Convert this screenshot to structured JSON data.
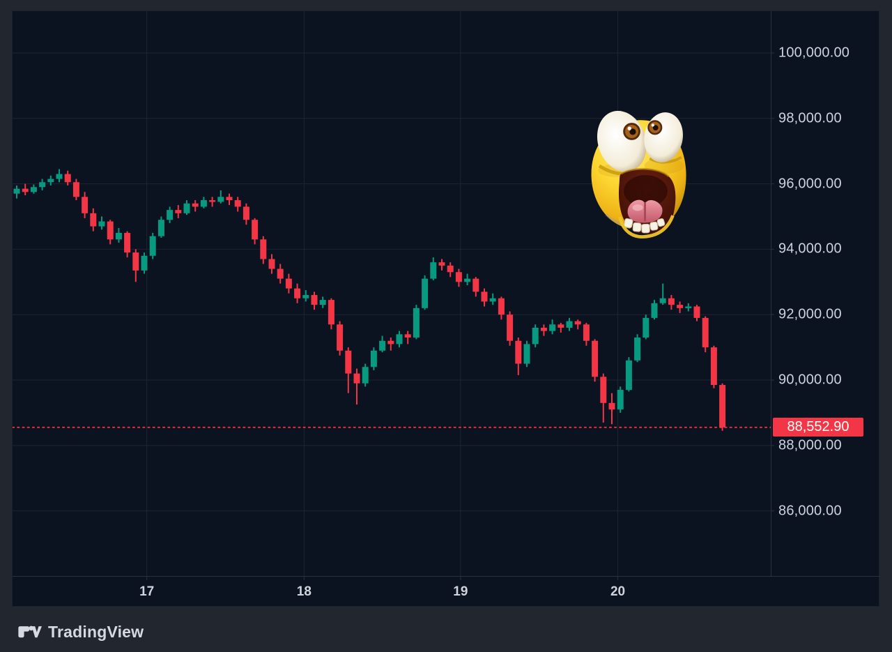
{
  "page": {
    "background": "#22262f"
  },
  "chart": {
    "panel_bg": "#0c1320",
    "grid_color": "#1d2534",
    "separator_color": "#2a3140",
    "axis_text_color": "#ced3dd",
    "up_color": "#089981",
    "down_color": "#f23645",
    "last_price_line_color": "#f23645",
    "last_price_badge_bg": "#f23645",
    "last_price_badge_text_color": "#ffffff"
  },
  "chart_data": {
    "type": "candlestick",
    "title": "",
    "legend_entries": [],
    "grid": true,
    "y_axis": {
      "labels": [
        "100,000.00",
        "98,000.00",
        "96,000.00",
        "94,000.00",
        "92,000.00",
        "90,000.00",
        "88,000.00",
        "86,000.00"
      ],
      "values": [
        100000,
        98000,
        96000,
        94000,
        92000,
        90000,
        88000,
        86000
      ],
      "range": [
        84009,
        101279
      ],
      "position": "right"
    },
    "x_axis": {
      "ticks": [
        {
          "label": "17",
          "index": 15.3
        },
        {
          "label": "18",
          "index": 33.8
        },
        {
          "label": "19",
          "index": 52.2
        },
        {
          "label": "20",
          "index": 70.7
        }
      ]
    },
    "last_price": 88552.9,
    "last_price_label": "88,552.90",
    "candles_ohlc": [
      [
        95700,
        95950,
        95550,
        95850
      ],
      [
        95850,
        96000,
        95650,
        95750
      ],
      [
        95750,
        95980,
        95700,
        95900
      ],
      [
        95900,
        96150,
        95800,
        96050
      ],
      [
        96050,
        96250,
        95950,
        96150
      ],
      [
        96150,
        96450,
        96050,
        96300
      ],
      [
        96300,
        96400,
        95950,
        96050
      ],
      [
        96050,
        96150,
        95500,
        95600
      ],
      [
        95600,
        95750,
        94950,
        95100
      ],
      [
        95100,
        95250,
        94550,
        94700
      ],
      [
        94700,
        95000,
        94600,
        94850
      ],
      [
        94850,
        94900,
        94150,
        94300
      ],
      [
        94300,
        94650,
        94200,
        94500
      ],
      [
        94500,
        94550,
        93750,
        93900
      ],
      [
        93900,
        94000,
        93000,
        93350
      ],
      [
        93350,
        93900,
        93250,
        93800
      ],
      [
        93800,
        94500,
        93700,
        94400
      ],
      [
        94400,
        95000,
        94350,
        94900
      ],
      [
        94900,
        95300,
        94800,
        95200
      ],
      [
        95200,
        95350,
        94950,
        95100
      ],
      [
        95100,
        95500,
        95050,
        95400
      ],
      [
        95400,
        95500,
        95150,
        95300
      ],
      [
        95300,
        95600,
        95250,
        95500
      ],
      [
        95500,
        95600,
        95300,
        95450
      ],
      [
        95450,
        95800,
        95400,
        95600
      ],
      [
        95600,
        95700,
        95350,
        95500
      ],
      [
        95500,
        95600,
        95150,
        95300
      ],
      [
        95300,
        95400,
        94750,
        94900
      ],
      [
        94900,
        94950,
        94150,
        94300
      ],
      [
        94300,
        94400,
        93550,
        93700
      ],
      [
        93700,
        93850,
        93250,
        93400
      ],
      [
        93400,
        93550,
        92950,
        93100
      ],
      [
        93100,
        93250,
        92650,
        92800
      ],
      [
        92800,
        92950,
        92350,
        92500
      ],
      [
        92500,
        92750,
        92400,
        92600
      ],
      [
        92600,
        92700,
        92150,
        92300
      ],
      [
        92300,
        92550,
        92200,
        92450
      ],
      [
        92450,
        92500,
        91550,
        91700
      ],
      [
        91700,
        91800,
        90750,
        90900
      ],
      [
        90900,
        91000,
        89600,
        90200
      ],
      [
        90200,
        90350,
        89250,
        89900
      ],
      [
        89900,
        90500,
        89800,
        90400
      ],
      [
        90400,
        91000,
        90300,
        90900
      ],
      [
        90900,
        91350,
        90850,
        91200
      ],
      [
        91200,
        91300,
        90900,
        91100
      ],
      [
        91100,
        91500,
        91000,
        91400
      ],
      [
        91400,
        91500,
        91100,
        91300
      ],
      [
        91300,
        92300,
        91250,
        92200
      ],
      [
        92200,
        93200,
        92150,
        93100
      ],
      [
        93100,
        93750,
        93050,
        93600
      ],
      [
        93600,
        93700,
        93350,
        93500
      ],
      [
        93500,
        93600,
        93150,
        93300
      ],
      [
        93300,
        93400,
        92850,
        93000
      ],
      [
        93000,
        93250,
        92900,
        93100
      ],
      [
        93100,
        93150,
        92550,
        92700
      ],
      [
        92700,
        92800,
        92250,
        92400
      ],
      [
        92400,
        92650,
        92300,
        92500
      ],
      [
        92500,
        92550,
        91850,
        92000
      ],
      [
        92000,
        92100,
        91050,
        91200
      ],
      [
        91200,
        91300,
        90150,
        90500
      ],
      [
        90500,
        91200,
        90400,
        91100
      ],
      [
        91100,
        91700,
        91000,
        91600
      ],
      [
        91600,
        91700,
        91350,
        91500
      ],
      [
        91500,
        91850,
        91400,
        91700
      ],
      [
        91700,
        91750,
        91450,
        91600
      ],
      [
        91600,
        91900,
        91500,
        91800
      ],
      [
        91800,
        91850,
        91550,
        91700
      ],
      [
        91700,
        91750,
        91050,
        91200
      ],
      [
        91200,
        91250,
        89950,
        90100
      ],
      [
        90100,
        90200,
        88700,
        89300
      ],
      [
        89300,
        89600,
        88650,
        89100
      ],
      [
        89100,
        89800,
        89000,
        89700
      ],
      [
        89700,
        90700,
        89650,
        90600
      ],
      [
        90600,
        91400,
        90550,
        91300
      ],
      [
        91300,
        92000,
        91250,
        91900
      ],
      [
        91900,
        92450,
        91850,
        92350
      ],
      [
        92350,
        92950,
        92300,
        92500
      ],
      [
        92500,
        92600,
        92150,
        92300
      ],
      [
        92300,
        92400,
        92050,
        92200
      ],
      [
        92200,
        92350,
        92100,
        92250
      ],
      [
        92250,
        92300,
        91800,
        91900
      ],
      [
        91900,
        91950,
        90850,
        91000
      ],
      [
        91000,
        91050,
        89750,
        89850
      ],
      [
        89850,
        89900,
        88450,
        88552.9
      ]
    ]
  },
  "overlay": {
    "sticker": "shocked-face-emoji"
  },
  "footer": {
    "logo_text": "TradingView"
  }
}
